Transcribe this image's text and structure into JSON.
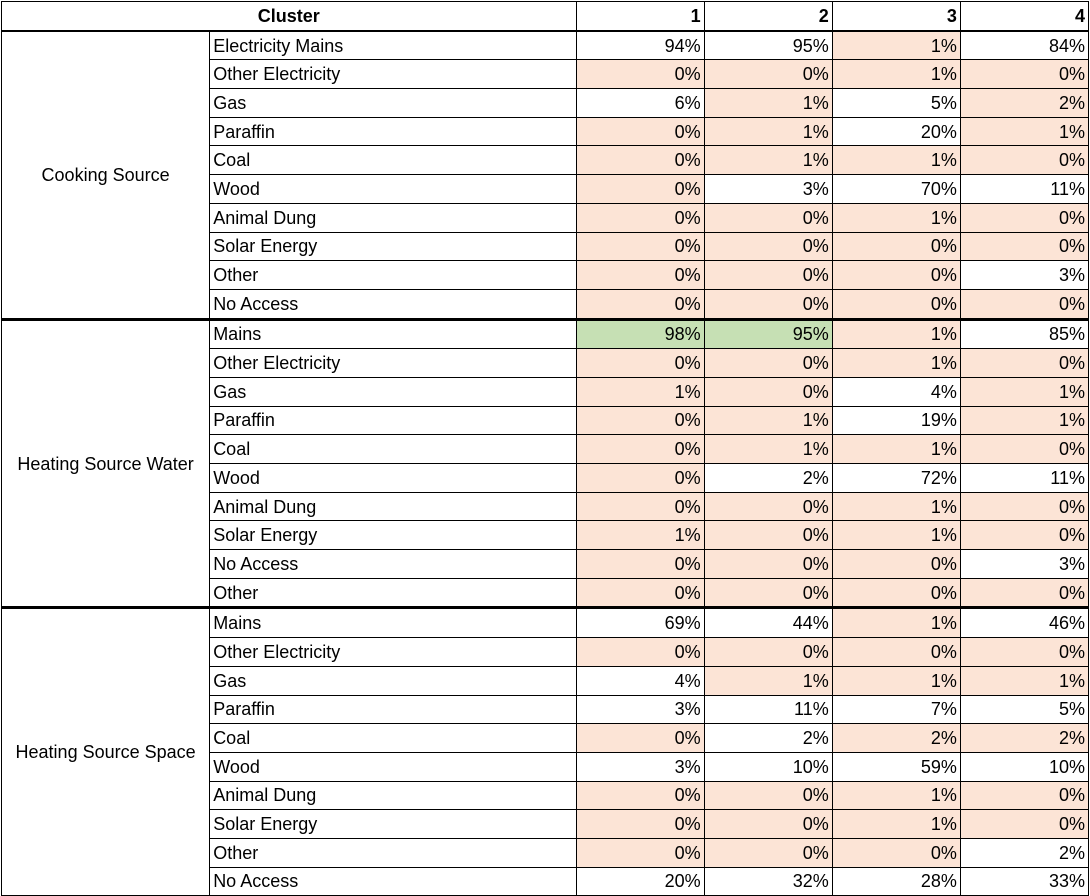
{
  "header": {
    "cluster_label": "Cluster",
    "columns": [
      "1",
      "2",
      "3",
      "4"
    ]
  },
  "colors": {
    "red_highlight": "#fce4d6",
    "green_highlight": "#c6e0b4"
  },
  "groups": [
    {
      "name": "Cooking Source",
      "rows": [
        {
          "label": "Electricity Mains",
          "values": [
            "94%",
            "95%",
            "1%",
            "84%"
          ],
          "hl": [
            "",
            "",
            "r",
            ""
          ]
        },
        {
          "label": "Other Electricity",
          "values": [
            "0%",
            "0%",
            "1%",
            "0%"
          ],
          "hl": [
            "r",
            "r",
            "r",
            "r"
          ]
        },
        {
          "label": "Gas",
          "values": [
            "6%",
            "1%",
            "5%",
            "2%"
          ],
          "hl": [
            "",
            "r",
            "",
            "r"
          ]
        },
        {
          "label": "Paraffin",
          "values": [
            "0%",
            "1%",
            "20%",
            "1%"
          ],
          "hl": [
            "r",
            "r",
            "",
            "r"
          ]
        },
        {
          "label": "Coal",
          "values": [
            "0%",
            "1%",
            "1%",
            "0%"
          ],
          "hl": [
            "r",
            "r",
            "r",
            "r"
          ]
        },
        {
          "label": "Wood",
          "values": [
            "0%",
            "3%",
            "70%",
            "11%"
          ],
          "hl": [
            "r",
            "",
            "",
            ""
          ]
        },
        {
          "label": "Animal Dung",
          "values": [
            "0%",
            "0%",
            "1%",
            "0%"
          ],
          "hl": [
            "r",
            "r",
            "r",
            "r"
          ]
        },
        {
          "label": "Solar Energy",
          "values": [
            "0%",
            "0%",
            "0%",
            "0%"
          ],
          "hl": [
            "r",
            "r",
            "r",
            "r"
          ]
        },
        {
          "label": "Other",
          "values": [
            "0%",
            "0%",
            "0%",
            "3%"
          ],
          "hl": [
            "r",
            "r",
            "r",
            ""
          ]
        },
        {
          "label": "No Access",
          "values": [
            "0%",
            "0%",
            "0%",
            "0%"
          ],
          "hl": [
            "r",
            "r",
            "r",
            "r"
          ]
        }
      ]
    },
    {
      "name": "Heating Source Water",
      "rows": [
        {
          "label": "Mains",
          "values": [
            "98%",
            "95%",
            "1%",
            "85%"
          ],
          "hl": [
            "g",
            "g",
            "r",
            ""
          ]
        },
        {
          "label": "Other Electricity",
          "values": [
            "0%",
            "0%",
            "1%",
            "0%"
          ],
          "hl": [
            "r",
            "r",
            "r",
            "r"
          ]
        },
        {
          "label": "Gas",
          "values": [
            "1%",
            "0%",
            "4%",
            "1%"
          ],
          "hl": [
            "r",
            "r",
            "",
            "r"
          ]
        },
        {
          "label": "Paraffin",
          "values": [
            "0%",
            "1%",
            "19%",
            "1%"
          ],
          "hl": [
            "r",
            "r",
            "",
            "r"
          ]
        },
        {
          "label": "Coal",
          "values": [
            "0%",
            "1%",
            "1%",
            "0%"
          ],
          "hl": [
            "r",
            "r",
            "r",
            "r"
          ]
        },
        {
          "label": "Wood",
          "values": [
            "0%",
            "2%",
            "72%",
            "11%"
          ],
          "hl": [
            "r",
            "",
            "",
            ""
          ]
        },
        {
          "label": "Animal Dung",
          "values": [
            "0%",
            "0%",
            "1%",
            "0%"
          ],
          "hl": [
            "r",
            "r",
            "r",
            "r"
          ]
        },
        {
          "label": "Solar Energy",
          "values": [
            "1%",
            "0%",
            "1%",
            "0%"
          ],
          "hl": [
            "r",
            "r",
            "r",
            "r"
          ]
        },
        {
          "label": "No Access",
          "values": [
            "0%",
            "0%",
            "0%",
            "3%"
          ],
          "hl": [
            "r",
            "r",
            "r",
            ""
          ]
        },
        {
          "label": "Other",
          "values": [
            "0%",
            "0%",
            "0%",
            "0%"
          ],
          "hl": [
            "r",
            "r",
            "r",
            "r"
          ]
        }
      ]
    },
    {
      "name": "Heating Source Space",
      "rows": [
        {
          "label": "Mains",
          "values": [
            "69%",
            "44%",
            "1%",
            "46%"
          ],
          "hl": [
            "",
            "",
            "r",
            ""
          ]
        },
        {
          "label": "Other Electricity",
          "values": [
            "0%",
            "0%",
            "0%",
            "0%"
          ],
          "hl": [
            "r",
            "r",
            "r",
            "r"
          ]
        },
        {
          "label": "Gas",
          "values": [
            "4%",
            "1%",
            "1%",
            "1%"
          ],
          "hl": [
            "",
            "r",
            "r",
            "r"
          ]
        },
        {
          "label": "Paraffin",
          "values": [
            "3%",
            "11%",
            "7%",
            "5%"
          ],
          "hl": [
            "",
            "",
            "",
            ""
          ]
        },
        {
          "label": "Coal",
          "values": [
            "0%",
            "2%",
            "2%",
            "2%"
          ],
          "hl": [
            "r",
            "",
            "r",
            "r"
          ]
        },
        {
          "label": "Wood",
          "values": [
            "3%",
            "10%",
            "59%",
            "10%"
          ],
          "hl": [
            "",
            "",
            "",
            ""
          ]
        },
        {
          "label": "Animal Dung",
          "values": [
            "0%",
            "0%",
            "1%",
            "0%"
          ],
          "hl": [
            "r",
            "r",
            "r",
            "r"
          ]
        },
        {
          "label": "Solar Energy",
          "values": [
            "0%",
            "0%",
            "1%",
            "0%"
          ],
          "hl": [
            "r",
            "r",
            "r",
            "r"
          ]
        },
        {
          "label": "Other",
          "values": [
            "0%",
            "0%",
            "0%",
            "2%"
          ],
          "hl": [
            "r",
            "r",
            "r",
            ""
          ]
        },
        {
          "label": "No Access",
          "values": [
            "20%",
            "32%",
            "28%",
            "33%"
          ],
          "hl": [
            "",
            "",
            "",
            ""
          ]
        }
      ]
    }
  ]
}
